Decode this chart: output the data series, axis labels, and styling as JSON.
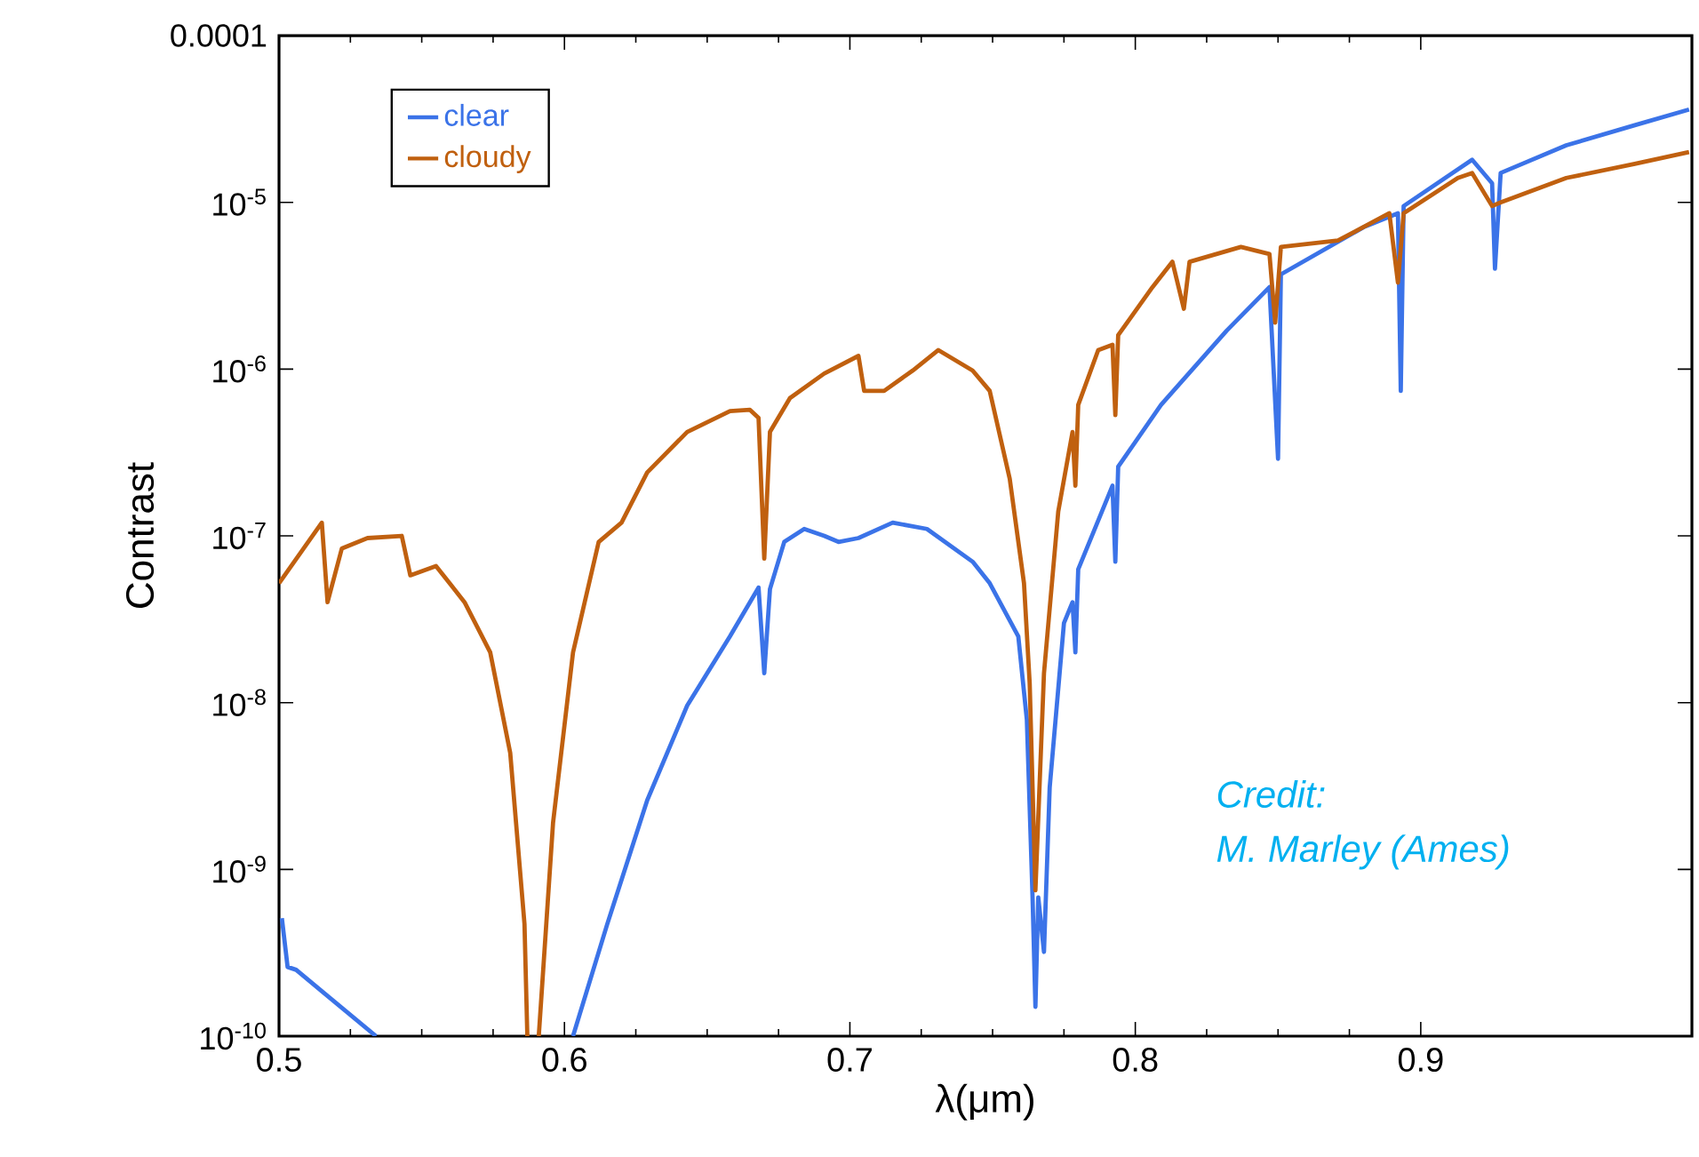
{
  "chart_data": {
    "type": "line",
    "xlabel": "λ(μm)",
    "ylabel": "Contrast",
    "annotations": [
      "Credit:",
      "M. Marley (Ames)"
    ],
    "log": "y",
    "legend": "top left",
    "marker": "none",
    "line_style": "solid",
    "xlim": [
      0.5,
      0.995
    ],
    "xticks": [
      0.5,
      0.6,
      0.7,
      0.8,
      0.9
    ],
    "ylim": [
      1e-10,
      0.0001
    ],
    "yticks": [
      {
        "value": 1e-10,
        "label": "10$^{-10}$"
      },
      {
        "value": 1e-09,
        "label": "10$^{-9}$"
      },
      {
        "value": 1e-08,
        "label": "10$^{-8}$"
      },
      {
        "value": 1e-07,
        "label": "10$^{-7}$"
      },
      {
        "value": 1e-06,
        "label": "10$^{-6}$"
      },
      {
        "value": 1e-05,
        "label": "10$^{-5}$"
      },
      {
        "value": 0.0001,
        "label": "0.0001"
      }
    ],
    "series": [
      {
        "name": "clear",
        "color": "#3b73e8",
        "x": [
          0.501,
          0.503,
          0.506,
          0.516,
          0.534,
          0.56,
          0.603,
          0.615,
          0.629,
          0.643,
          0.658,
          0.668,
          0.67,
          0.672,
          0.677,
          0.684,
          0.691,
          0.696,
          0.703,
          0.715,
          0.727,
          0.743,
          0.749,
          0.759,
          0.762,
          0.764,
          0.765,
          0.766,
          0.768,
          0.77,
          0.775,
          0.778,
          0.779,
          0.78,
          0.792,
          0.793,
          0.794,
          0.809,
          0.832,
          0.847,
          0.85,
          0.851,
          0.88,
          0.892,
          0.893,
          0.894,
          0.918,
          0.925,
          0.926,
          0.928,
          0.951,
          0.975,
          0.994
        ],
        "values": [
          5.1e-10,
          2.6e-10,
          2.5e-10,
          1.8e-10,
          1e-10,
          null,
          1e-10,
          4.7e-10,
          2.6e-09,
          9.6e-09,
          2.5e-08,
          4.9e-08,
          1.5e-08,
          4.8e-08,
          9.2e-08,
          1.1e-07,
          1e-07,
          9.2e-08,
          9.7e-08,
          1.2e-07,
          1.1e-07,
          7e-08,
          5.2e-08,
          2.5e-08,
          7.9e-09,
          6.8e-10,
          1.5e-10,
          6.8e-10,
          3.2e-10,
          3.1e-09,
          3e-08,
          4e-08,
          2e-08,
          6.3e-08,
          2e-07,
          7e-08,
          2.6e-07,
          6.1e-07,
          1.7e-06,
          3.1e-06,
          2.9e-07,
          3.7e-06,
          7.1e-06,
          8.6e-06,
          7.4e-07,
          9.5e-06,
          1.8e-05,
          1.3e-05,
          4e-06,
          1.5e-05,
          2.2e-05,
          2.9e-05,
          3.6e-05
        ]
      },
      {
        "name": "cloudy",
        "color": "#c0600f",
        "x": [
          0.5,
          0.515,
          0.517,
          0.522,
          0.531,
          0.543,
          0.546,
          0.555,
          0.565,
          0.574,
          0.581,
          0.586,
          0.587,
          0.589,
          0.591,
          0.596,
          0.603,
          0.612,
          0.62,
          0.629,
          0.643,
          0.658,
          0.665,
          0.668,
          0.67,
          0.672,
          0.679,
          0.691,
          0.703,
          0.705,
          0.712,
          0.722,
          0.731,
          0.743,
          0.749,
          0.756,
          0.761,
          0.763,
          0.765,
          0.768,
          0.773,
          0.778,
          0.779,
          0.78,
          0.787,
          0.792,
          0.793,
          0.794,
          0.806,
          0.813,
          0.817,
          0.819,
          0.837,
          0.847,
          0.849,
          0.851,
          0.871,
          0.889,
          0.892,
          0.894,
          0.913,
          0.918,
          0.925,
          0.928,
          0.951,
          0.975,
          0.994
        ],
        "values": [
          5.2e-08,
          1.2e-07,
          4e-08,
          8.4e-08,
          9.7e-08,
          1e-07,
          5.8e-08,
          6.6e-08,
          4e-08,
          2e-08,
          5e-09,
          4.7e-10,
          1e-10,
          null,
          1e-10,
          1.9e-09,
          2e-08,
          9.2e-08,
          1.2e-07,
          2.4e-07,
          4.2e-07,
          5.6e-07,
          5.7e-07,
          5.1e-07,
          7.3e-08,
          4.2e-07,
          6.7e-07,
          9.4e-07,
          1.2e-06,
          7.4e-07,
          7.4e-07,
          9.8e-07,
          1.3e-06,
          9.8e-07,
          7.4e-07,
          2.2e-07,
          5.2e-08,
          1.3e-08,
          7.5e-10,
          1.5e-08,
          1.4e-07,
          4.2e-07,
          2e-07,
          6.1e-07,
          1.3e-06,
          1.4e-06,
          5.3e-07,
          1.6e-06,
          3.1e-06,
          4.4e-06,
          2.3e-06,
          4.4e-06,
          5.4e-06,
          4.9e-06,
          1.9e-06,
          5.4e-06,
          5.9e-06,
          8.6e-06,
          3.3e-06,
          8.6e-06,
          1.4e-05,
          1.5e-05,
          9.5e-06,
          1e-05,
          1.4e-05,
          1.7e-05,
          2e-05
        ]
      }
    ]
  }
}
